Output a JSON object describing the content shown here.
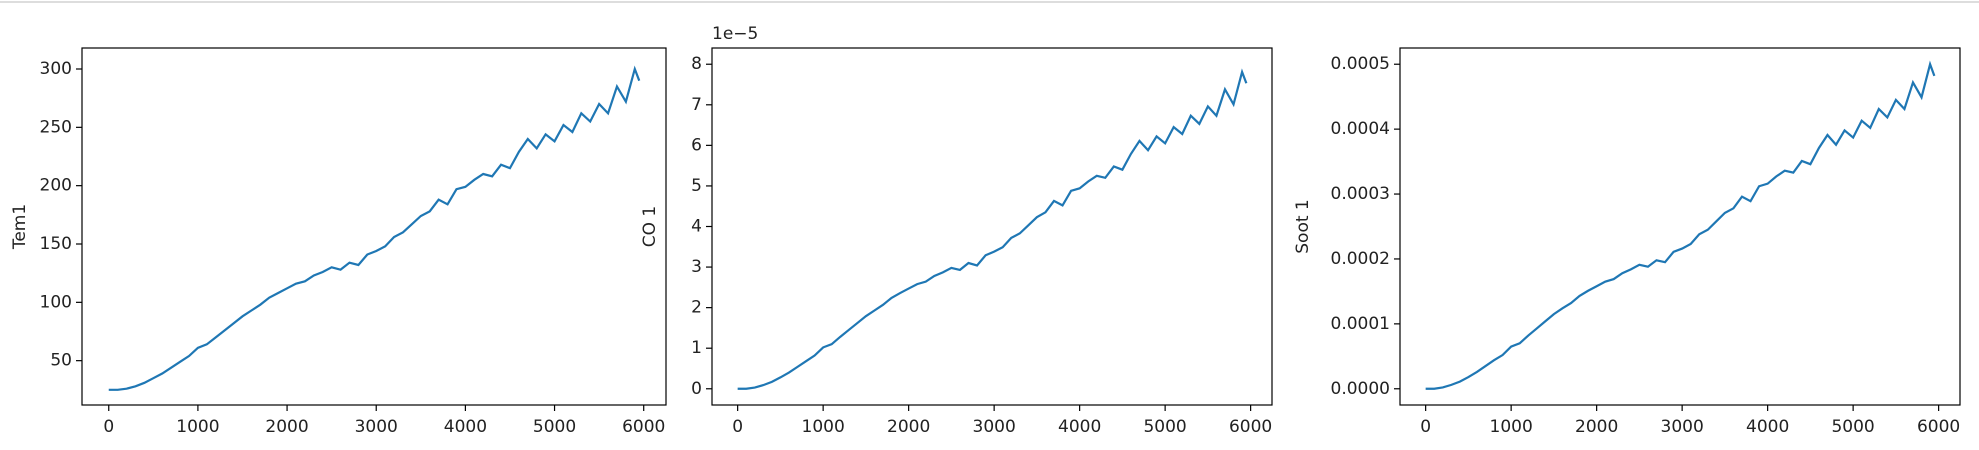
{
  "chart_data": [
    {
      "type": "line",
      "ylabel": "Tem1",
      "x": [
        0,
        100,
        200,
        300,
        400,
        500,
        600,
        700,
        800,
        900,
        1000,
        1100,
        1200,
        1300,
        1400,
        1500,
        1600,
        1700,
        1800,
        1900,
        2000,
        2100,
        2200,
        2300,
        2400,
        2500,
        2600,
        2700,
        2800,
        2900,
        3000,
        3100,
        3200,
        3300,
        3400,
        3500,
        3600,
        3700,
        3800,
        3900,
        4000,
        4100,
        4200,
        4300,
        4400,
        4500,
        4600,
        4700,
        4800,
        4900,
        5000,
        5100,
        5200,
        5300,
        5400,
        5500,
        5600,
        5700,
        5800,
        5900,
        5950
      ],
      "series": [
        {
          "color": "#1f77b4",
          "values": [
            25,
            25,
            26,
            28,
            31,
            35,
            39,
            44,
            49,
            54,
            61,
            64,
            70,
            76,
            82,
            88,
            93,
            98,
            104,
            108,
            112,
            116,
            118,
            123,
            126,
            130,
            128,
            134,
            132,
            141,
            144,
            148,
            156,
            160,
            167,
            174,
            178,
            188,
            184,
            197,
            199,
            205,
            210,
            208,
            218,
            215,
            229,
            240,
            232,
            244,
            238,
            252,
            246,
            262,
            255,
            270,
            262,
            285,
            272,
            300,
            290
          ]
        }
      ],
      "xlim": [
        -300,
        6250
      ],
      "xticks": [
        0,
        1000,
        2000,
        3000,
        4000,
        5000,
        6000
      ],
      "ylim": [
        12,
        318
      ],
      "yticks": [
        50,
        100,
        150,
        200,
        250,
        300
      ]
    },
    {
      "type": "line",
      "ylabel": "CO 1",
      "offset_label": "1e−5",
      "x": [
        0,
        100,
        200,
        300,
        400,
        500,
        600,
        700,
        800,
        900,
        1000,
        1100,
        1200,
        1300,
        1400,
        1500,
        1600,
        1700,
        1800,
        1900,
        2000,
        2100,
        2200,
        2300,
        2400,
        2500,
        2600,
        2700,
        2800,
        2900,
        3000,
        3100,
        3200,
        3300,
        3400,
        3500,
        3600,
        3700,
        3800,
        3900,
        4000,
        4100,
        4200,
        4300,
        4400,
        4500,
        4600,
        4700,
        4800,
        4900,
        5000,
        5100,
        5200,
        5300,
        5400,
        5500,
        5600,
        5700,
        5800,
        5900,
        5950
      ],
      "series": [
        {
          "color": "#1f77b4",
          "values": [
            0,
            0,
            0.03,
            0.09,
            0.17,
            0.28,
            0.4,
            0.54,
            0.68,
            0.82,
            1.02,
            1.1,
            1.28,
            1.45,
            1.62,
            1.79,
            1.93,
            2.07,
            2.24,
            2.36,
            2.47,
            2.58,
            2.64,
            2.78,
            2.87,
            2.98,
            2.93,
            3.1,
            3.04,
            3.29,
            3.38,
            3.49,
            3.72,
            3.83,
            4.03,
            4.23,
            4.35,
            4.63,
            4.52,
            4.88,
            4.94,
            5.11,
            5.25,
            5.2,
            5.48,
            5.4,
            5.79,
            6.11,
            5.88,
            6.22,
            6.05,
            6.45,
            6.28,
            6.73,
            6.53,
            6.96,
            6.73,
            7.38,
            7.01,
            7.81,
            7.53
          ]
        }
      ],
      "xlim": [
        -300,
        6250
      ],
      "xticks": [
        0,
        1000,
        2000,
        3000,
        4000,
        5000,
        6000
      ],
      "ylim": [
        -0.4,
        8.4
      ],
      "yticks": [
        0,
        1,
        2,
        3,
        4,
        5,
        6,
        7,
        8
      ]
    },
    {
      "type": "line",
      "ylabel": "Soot 1",
      "x": [
        0,
        100,
        200,
        300,
        400,
        500,
        600,
        700,
        800,
        900,
        1000,
        1100,
        1200,
        1300,
        1400,
        1500,
        1600,
        1700,
        1800,
        1900,
        2000,
        2100,
        2200,
        2300,
        2400,
        2500,
        2600,
        2700,
        2800,
        2900,
        3000,
        3100,
        3200,
        3300,
        3400,
        3500,
        3600,
        3700,
        3800,
        3900,
        4000,
        4100,
        4200,
        4300,
        4400,
        4500,
        4600,
        4700,
        4800,
        4900,
        5000,
        5100,
        5200,
        5300,
        5400,
        5500,
        5600,
        5700,
        5800,
        5900,
        5950
      ],
      "series": [
        {
          "color": "#1f77b4",
          "values": [
            0,
            0,
            2e-06,
            6e-06,
            1.1e-05,
            1.8e-05,
            2.6e-05,
            3.5e-05,
            4.4e-05,
            5.2e-05,
            6.5e-05,
            7e-05,
            8.2e-05,
            9.3e-05,
            0.000104,
            0.000115,
            0.000124,
            0.000132,
            0.000143,
            0.000151,
            0.000158,
            0.000165,
            0.000169,
            0.000178,
            0.000184,
            0.000191,
            0.000188,
            0.000198,
            0.000195,
            0.000211,
            0.000216,
            0.000223,
            0.000238,
            0.000245,
            0.000258,
            0.000271,
            0.000278,
            0.000296,
            0.000289,
            0.000312,
            0.000316,
            0.000327,
            0.000336,
            0.000333,
            0.000351,
            0.000346,
            0.000371,
            0.000391,
            0.000376,
            0.000398,
            0.000387,
            0.000413,
            0.000402,
            0.000431,
            0.000418,
            0.000445,
            0.000431,
            0.000472,
            0.000449,
            0.0005,
            0.000482
          ]
        }
      ],
      "xlim": [
        -300,
        6250
      ],
      "xticks": [
        0,
        1000,
        2000,
        3000,
        4000,
        5000,
        6000
      ],
      "ylim": [
        -2.5e-05,
        0.000525
      ],
      "yticks": [
        {
          "value": 0,
          "label": "0.0000"
        },
        {
          "value": 0.0001,
          "label": "0.0001"
        },
        {
          "value": 0.0002,
          "label": "0.0002"
        },
        {
          "value": 0.0003,
          "label": "0.0003"
        },
        {
          "value": 0.0004,
          "label": "0.0004"
        },
        {
          "value": 0.0005,
          "label": "0.0005"
        }
      ]
    }
  ]
}
